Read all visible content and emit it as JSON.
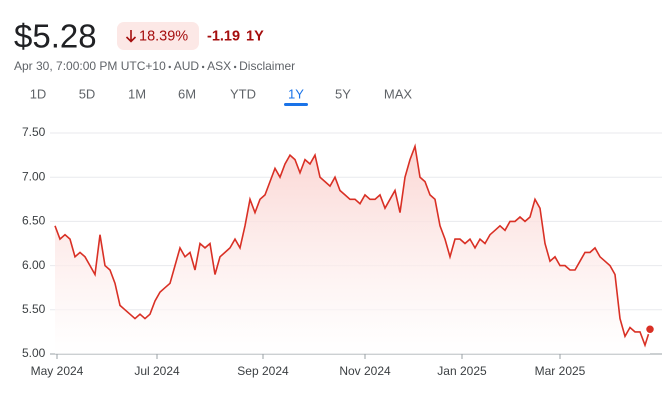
{
  "header": {
    "price": "$5.28",
    "change_percent": "18.39%",
    "change": "-1.19",
    "period": "1Y",
    "info": [
      "Apr 30, 7:00:00 PM UTC+10",
      "AUD",
      "ASX"
    ],
    "disclaimer": "Disclaimer"
  },
  "tabs": {
    "items": [
      "1D",
      "5D",
      "1M",
      "6M",
      "YTD",
      "1Y",
      "5Y",
      "MAX"
    ],
    "selected": 5
  },
  "chart_data": {
    "type": "line",
    "color": "#d93025",
    "grid": true,
    "xlim": [
      0,
      120
    ],
    "xticks": [
      {
        "value": 0.4,
        "label": "May 2024"
      },
      {
        "value": 20.4,
        "label": "Jul 2024"
      },
      {
        "value": 41.6,
        "label": "Sep 2024"
      },
      {
        "value": 62,
        "label": "Nov 2024"
      },
      {
        "value": 81.4,
        "label": "Jan 2025"
      },
      {
        "value": 101,
        "label": "Mar 2025"
      }
    ],
    "ylim": [
      5,
      7.6
    ],
    "yticks": [
      {
        "value": 5,
        "label": "5.00"
      },
      {
        "value": 5.5,
        "label": "5.50"
      },
      {
        "value": 6,
        "label": "6.00"
      },
      {
        "value": 6.5,
        "label": "6.50"
      },
      {
        "value": 7,
        "label": "7.00"
      },
      {
        "value": 7.5,
        "label": "7.50"
      }
    ],
    "values": [
      6.45,
      6.3,
      6.35,
      6.3,
      6.1,
      6.15,
      6.1,
      6.0,
      5.9,
      6.35,
      6.0,
      5.95,
      5.8,
      5.55,
      5.5,
      5.45,
      5.4,
      5.45,
      5.4,
      5.45,
      5.6,
      5.7,
      5.75,
      5.8,
      6.0,
      6.2,
      6.1,
      6.15,
      5.95,
      6.25,
      6.2,
      6.25,
      5.9,
      6.1,
      6.15,
      6.2,
      6.3,
      6.2,
      6.45,
      6.75,
      6.6,
      6.75,
      6.8,
      6.95,
      7.1,
      7.0,
      7.15,
      7.25,
      7.2,
      7.05,
      7.2,
      7.15,
      7.25,
      7.0,
      6.95,
      6.9,
      7.0,
      6.85,
      6.8,
      6.75,
      6.75,
      6.7,
      6.8,
      6.75,
      6.75,
      6.8,
      6.65,
      6.75,
      6.85,
      6.6,
      7.0,
      7.2,
      7.35,
      7.0,
      6.95,
      6.8,
      6.75,
      6.45,
      6.3,
      6.1,
      6.3,
      6.3,
      6.25,
      6.3,
      6.2,
      6.3,
      6.25,
      6.35,
      6.4,
      6.45,
      6.4,
      6.5,
      6.5,
      6.55,
      6.5,
      6.55,
      6.75,
      6.65,
      6.25,
      6.05,
      6.1,
      6.0,
      6.0,
      5.95,
      5.95,
      6.05,
      6.15,
      6.15,
      6.2,
      6.1,
      6.05,
      6.0,
      5.9,
      5.4,
      5.2,
      5.3,
      5.25,
      5.25,
      5.1,
      5.28
    ]
  }
}
